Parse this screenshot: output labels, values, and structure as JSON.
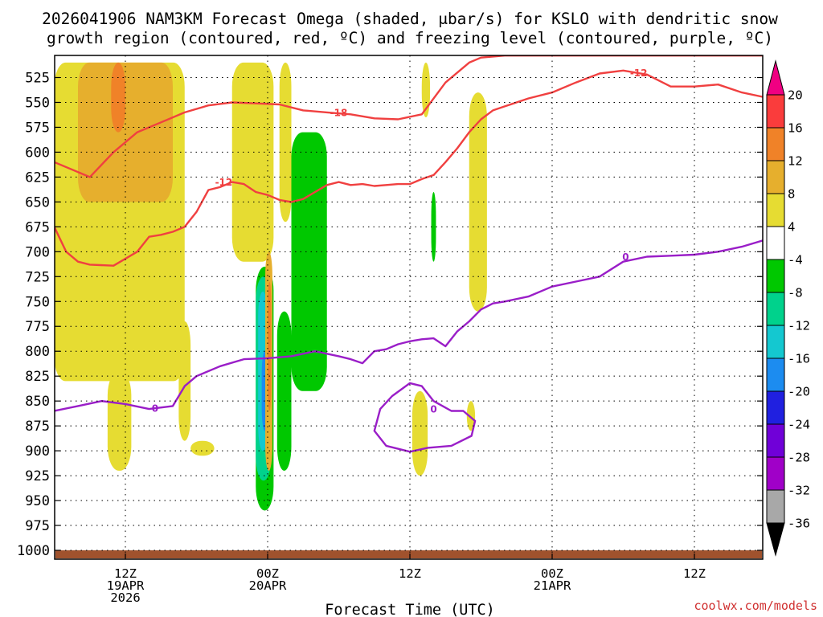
{
  "title": {
    "line1": "2026041906 NAM3KM Forecast Omega (shaded, μbar/s) for KSLO with dendritic snow",
    "line2": "growth region (contoured, red, ºC) and freezing level (contoured, purple, ºC)"
  },
  "credit": "coolwx.com/models",
  "credit_color": "#d03030",
  "colors": {
    "red_contour": "#f04040",
    "purple_contour": "#9a1ec8",
    "ground": "#a0522d",
    "grid": "#000000"
  },
  "chart_data": {
    "type": "heatmap",
    "xlabel": "Forecast Time (UTC)",
    "ylabel": "",
    "y_axis": "pressure (mb), reversed",
    "ylim": [
      1000,
      510
    ],
    "xlim_hours": [
      6,
      66
    ],
    "y_ticks": [
      525,
      550,
      575,
      600,
      625,
      650,
      675,
      700,
      725,
      750,
      775,
      800,
      825,
      850,
      875,
      900,
      925,
      950,
      975,
      1000
    ],
    "x_ticks": [
      {
        "hour": 12,
        "lines": [
          "12Z",
          "19APR",
          "2026"
        ]
      },
      {
        "hour": 24,
        "lines": [
          "00Z",
          "20APR"
        ]
      },
      {
        "hour": 36,
        "lines": [
          "12Z"
        ]
      },
      {
        "hour": 48,
        "lines": [
          "00Z",
          "21APR"
        ]
      },
      {
        "hour": 60,
        "lines": [
          "12Z"
        ]
      }
    ],
    "colorbar": {
      "levels": [
        -36,
        -32,
        -28,
        -24,
        -20,
        -16,
        -12,
        -8,
        -4,
        4,
        8,
        12,
        16,
        20
      ],
      "colors": [
        "#a8a8a8",
        "#a000c8",
        "#7000d8",
        "#2020e0",
        "#1c8cf0",
        "#14c8d0",
        "#00d28c",
        "#00c800",
        "#ffffff",
        "#e6dc32",
        "#e6af2d",
        "#f08228",
        "#fa3c3c",
        "#f00082"
      ],
      "under_color": "#000000",
      "over_color": "#f00082"
    },
    "omega_regions": [
      {
        "level_range": [
          4,
          8
        ],
        "color": "#e6dc32",
        "note": "upward-positive shading (yellow)",
        "x_hours": [
          6,
          17
        ],
        "p_range": [
          510,
          830
        ]
      },
      {
        "level_range": [
          4,
          8
        ],
        "color": "#e6dc32",
        "x_hours": [
          21,
          24.5
        ],
        "p_range": [
          510,
          710
        ]
      },
      {
        "level_range": [
          4,
          8
        ],
        "color": "#e6dc32",
        "x_hours": [
          25,
          26
        ],
        "p_range": [
          510,
          670
        ]
      },
      {
        "level_range": [
          4,
          8
        ],
        "color": "#e6dc32",
        "x_hours": [
          37,
          37.7
        ],
        "p_range": [
          510,
          565
        ]
      },
      {
        "level_range": [
          4,
          8
        ],
        "color": "#e6dc32",
        "x_hours": [
          41,
          42.5
        ],
        "p_range": [
          540,
          760
        ]
      },
      {
        "level_range": [
          4,
          8
        ],
        "color": "#e6dc32",
        "x_hours": [
          10.5,
          12.5
        ],
        "p_range": [
          820,
          920
        ]
      },
      {
        "level_range": [
          4,
          8
        ],
        "color": "#e6dc32",
        "x_hours": [
          16.5,
          17.5
        ],
        "p_range": [
          770,
          890
        ]
      },
      {
        "level_range": [
          4,
          8
        ],
        "color": "#e6dc32",
        "x_hours": [
          17.5,
          19.5
        ],
        "p_range": [
          890,
          905
        ]
      },
      {
        "level_range": [
          4,
          8
        ],
        "color": "#e6dc32",
        "x_hours": [
          36.2,
          37.5
        ],
        "p_range": [
          840,
          925
        ]
      },
      {
        "level_range": [
          4,
          8
        ],
        "color": "#e6dc32",
        "x_hours": [
          40.8,
          41.5
        ],
        "p_range": [
          850,
          880
        ]
      },
      {
        "level_range": [
          8,
          12
        ],
        "color": "#e6af2d",
        "x_hours": [
          8,
          16
        ],
        "p_range": [
          510,
          650
        ]
      },
      {
        "level_range": [
          12,
          16
        ],
        "color": "#f08228",
        "x_hours": [
          10.8,
          12
        ],
        "p_range": [
          510,
          580
        ]
      },
      {
        "level_range": [
          -8,
          -4
        ],
        "color": "#00c800",
        "x_hours": [
          23,
          24.5
        ],
        "p_range": [
          715,
          960
        ]
      },
      {
        "level_range": [
          -8,
          -4
        ],
        "color": "#00c800",
        "x_hours": [
          24.8,
          26
        ],
        "p_range": [
          760,
          920
        ]
      },
      {
        "level_range": [
          -8,
          -4
        ],
        "color": "#00c800",
        "x_hours": [
          26,
          29
        ],
        "p_range": [
          580,
          840
        ]
      },
      {
        "level_range": [
          -8,
          -4
        ],
        "color": "#00c800",
        "x_hours": [
          37.8,
          38.2
        ],
        "p_range": [
          640,
          710
        ]
      },
      {
        "level_range": [
          -12,
          -8
        ],
        "color": "#00d28c",
        "x_hours": [
          23,
          24.3
        ],
        "p_range": [
          725,
          930
        ]
      },
      {
        "level_range": [
          -16,
          -12
        ],
        "color": "#14c8d0",
        "x_hours": [
          23.2,
          24
        ],
        "p_range": [
          740,
          900
        ]
      },
      {
        "level_range": [
          -20,
          -16
        ],
        "color": "#1c8cf0",
        "x_hours": [
          23.5,
          24
        ],
        "p_range": [
          800,
          880
        ]
      },
      {
        "level_range": [
          8,
          12
        ],
        "color": "#e6af2d",
        "x_hours": [
          23.8,
          24.4
        ],
        "p_range": [
          700,
          920
        ]
      },
      {
        "level_range": [
          12,
          16
        ],
        "color": "#f08228",
        "x_hours": [
          24,
          24.3
        ],
        "p_range": [
          730,
          860
        ]
      }
    ],
    "series": [
      {
        "label": "-18",
        "color": "#f04040",
        "x": [
          6,
          9,
          11,
          13,
          15,
          17,
          19,
          21,
          23,
          25,
          27,
          29,
          31,
          33,
          35,
          37,
          39,
          41,
          42,
          44,
          46,
          48,
          50,
          52,
          54,
          56,
          58,
          60,
          62,
          64,
          66
        ],
        "y": [
          610,
          625,
          600,
          580,
          570,
          560,
          553,
          550,
          551,
          552,
          558,
          560,
          562,
          566,
          567,
          562,
          530,
          510,
          505,
          503,
          503,
          503,
          503,
          503,
          503,
          503,
          503,
          503,
          503,
          503,
          503
        ]
      },
      {
        "label": "-12",
        "color": "#f04040",
        "x": [
          6,
          7,
          8,
          9,
          11,
          13,
          14,
          15,
          16,
          17,
          18,
          19,
          20,
          21,
          22,
          23,
          24,
          25,
          26,
          27,
          28,
          29,
          30,
          31,
          32,
          33,
          34,
          35,
          36,
          37,
          38,
          39,
          40,
          41,
          42,
          43,
          44,
          46,
          48,
          50,
          52,
          54,
          56,
          58,
          60,
          62,
          64,
          66
        ],
        "y": [
          675,
          700,
          710,
          713,
          714,
          700,
          685,
          683,
          680,
          675,
          660,
          638,
          635,
          630,
          632,
          640,
          643,
          648,
          650,
          647,
          640,
          633,
          630,
          633,
          632,
          634,
          633,
          632,
          632,
          627,
          623,
          610,
          596,
          580,
          567,
          558,
          554,
          546,
          540,
          530,
          521,
          518,
          522,
          534,
          534,
          532,
          540,
          545
        ]
      },
      {
        "label": "0",
        "color": "#9a1ec8",
        "x": [
          6,
          8,
          10,
          12,
          14,
          16,
          17,
          18,
          20,
          22,
          24,
          26,
          28,
          30,
          31,
          32,
          33,
          34,
          35,
          36,
          37,
          38,
          39,
          40,
          41,
          42,
          43,
          44,
          46,
          48,
          50,
          52,
          54,
          56,
          58,
          60,
          62,
          64,
          66
        ],
        "y": [
          860,
          855,
          850,
          853,
          858,
          855,
          835,
          825,
          815,
          808,
          807,
          805,
          800,
          805,
          808,
          812,
          800,
          798,
          793,
          790,
          788,
          787,
          795,
          780,
          770,
          758,
          752,
          750,
          745,
          735,
          730,
          725,
          710,
          705,
          704,
          703,
          700,
          695,
          688
        ]
      },
      {
        "label": "0",
        "color": "#9a1ec8",
        "closed": true,
        "x": [
          36,
          37,
          38,
          39.5,
          40.5,
          41.5,
          41.2,
          39.5,
          37.5,
          36,
          34,
          33,
          33.5,
          34.5,
          36
        ],
        "y": [
          832,
          835,
          850,
          860,
          860,
          870,
          885,
          895,
          897,
          901,
          895,
          880,
          858,
          845,
          832
        ]
      }
    ],
    "contour_labels": [
      {
        "text": "-18",
        "x": 30,
        "p": 560,
        "color": "#f04040"
      },
      {
        "text": "-12",
        "x": 20.3,
        "p": 630,
        "color": "#f04040"
      },
      {
        "text": "-12",
        "x": 55.3,
        "p": 520,
        "color": "#f04040"
      },
      {
        "text": "0",
        "x": 14.5,
        "p": 857,
        "color": "#9a1ec8"
      },
      {
        "text": "0",
        "x": 38,
        "p": 858,
        "color": "#9a1ec8"
      },
      {
        "text": "0",
        "x": 54.2,
        "p": 705,
        "color": "#9a1ec8"
      }
    ]
  }
}
